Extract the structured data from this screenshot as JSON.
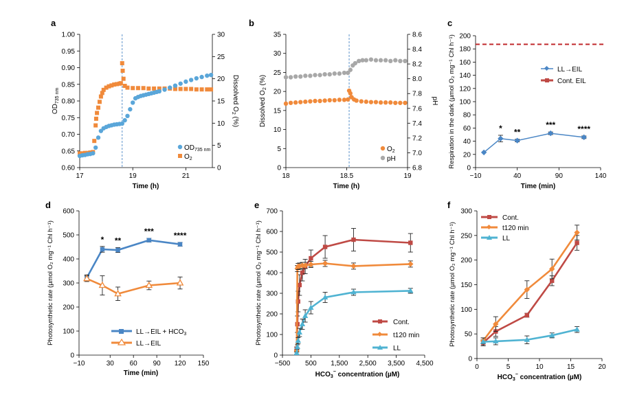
{
  "figure": {
    "colors": {
      "blue": "#4a86c5",
      "lightblue": "#5aa6d9",
      "orange": "#f08a3b",
      "darkorange": "#e9752b",
      "red": "#bf4a45",
      "cyan": "#4fb3d2",
      "gray": "#a8a8a8",
      "dashred": "#c0282b"
    }
  },
  "chart_data": [
    {
      "panel": "a",
      "type": "scatter",
      "xlabel": "Time (h)",
      "ylabel": "OD735 nm",
      "y2label": "Dissolved O2 (%)",
      "xlim": [
        17,
        22
      ],
      "ylim": [
        0.6,
        1.0
      ],
      "y2lim": [
        0,
        30
      ],
      "xticks": [
        "17",
        "19",
        "21"
      ],
      "yticks": [
        "0.60",
        "0.65",
        "0.70",
        "0.75",
        "0.80",
        "0.85",
        "0.90",
        "0.95",
        "1.00"
      ],
      "y2ticks": [
        "0",
        "5",
        "10",
        "15",
        "20",
        "25",
        "30"
      ],
      "vline_x": 18.6,
      "series": [
        {
          "name": "OD735 nm",
          "axis": "left",
          "color": "lightblue",
          "x": [
            17.0,
            17.1,
            17.2,
            17.3,
            17.4,
            17.5,
            17.6,
            17.7,
            17.8,
            17.9,
            18.0,
            18.1,
            18.2,
            18.3,
            18.4,
            18.5,
            18.6,
            18.7,
            18.8,
            18.9,
            19.0,
            19.1,
            19.2,
            19.3,
            19.4,
            19.5,
            19.6,
            19.7,
            19.8,
            19.9,
            20.0,
            20.2,
            20.4,
            20.6,
            20.8,
            21.0,
            21.2,
            21.4,
            21.6,
            21.8,
            21.95
          ],
          "y": [
            0.635,
            0.637,
            0.638,
            0.64,
            0.641,
            0.643,
            0.66,
            0.69,
            0.71,
            0.718,
            0.722,
            0.725,
            0.727,
            0.729,
            0.73,
            0.731,
            0.732,
            0.742,
            0.755,
            0.775,
            0.795,
            0.808,
            0.812,
            0.815,
            0.817,
            0.819,
            0.821,
            0.823,
            0.825,
            0.827,
            0.829,
            0.834,
            0.84,
            0.846,
            0.852,
            0.858,
            0.863,
            0.868,
            0.872,
            0.876,
            0.878
          ]
        },
        {
          "name": "O2",
          "axis": "right",
          "color": "orange",
          "x": [
            17.0,
            17.1,
            17.2,
            17.3,
            17.4,
            17.5,
            17.55,
            17.6,
            17.62,
            17.65,
            17.7,
            17.75,
            17.8,
            17.85,
            17.9,
            18.0,
            18.1,
            18.2,
            18.3,
            18.4,
            18.5,
            18.55,
            18.6,
            18.62,
            18.65,
            18.7,
            18.8,
            19.0,
            19.2,
            19.4,
            19.6,
            19.8,
            20.0,
            20.2,
            20.4,
            20.6,
            20.8,
            21.0,
            21.2,
            21.4,
            21.6,
            21.8,
            21.95
          ],
          "y": [
            3.2,
            3.2,
            3.3,
            3.3,
            3.4,
            3.5,
            6.0,
            9.5,
            11.0,
            12.3,
            13.5,
            14.8,
            16.0,
            16.8,
            17.5,
            18.0,
            18.3,
            18.5,
            18.7,
            18.8,
            18.9,
            19.0,
            23.5,
            21.8,
            20.0,
            18.4,
            18.0,
            17.9,
            17.9,
            17.9,
            17.8,
            17.8,
            17.8,
            17.8,
            17.8,
            17.7,
            17.7,
            17.7,
            17.7,
            17.6,
            17.6,
            17.6,
            17.6
          ]
        }
      ]
    },
    {
      "panel": "b",
      "type": "scatter",
      "xlabel": "Time (h)",
      "ylabel": "Dissolved O2 (%)",
      "y2label": "pH",
      "xlim": [
        18,
        19
      ],
      "ylim": [
        0,
        35
      ],
      "y2lim": [
        6.8,
        8.6
      ],
      "xticks": [
        "18",
        "18.5",
        "19"
      ],
      "yticks": [
        "0",
        "5",
        "10",
        "15",
        "20",
        "25",
        "30",
        "35"
      ],
      "y2ticks": [
        "6.8",
        "7.0",
        "7.2",
        "7.4",
        "7.6",
        "7.8",
        "8.0",
        "8.2",
        "8.4",
        "8.6"
      ],
      "vline_x": 18.52,
      "series": [
        {
          "name": "O2",
          "axis": "left",
          "color": "orange",
          "x": [
            18.0,
            18.04,
            18.08,
            18.12,
            18.16,
            18.2,
            18.24,
            18.28,
            18.32,
            18.36,
            18.4,
            18.44,
            18.48,
            18.51,
            18.52,
            18.53,
            18.54,
            18.56,
            18.58,
            18.62,
            18.66,
            18.7,
            18.74,
            18.78,
            18.82,
            18.86,
            18.9,
            18.94,
            18.98
          ],
          "y": [
            16.8,
            17.0,
            17.1,
            17.2,
            17.3,
            17.4,
            17.5,
            17.5,
            17.6,
            17.7,
            17.7,
            17.8,
            17.8,
            17.9,
            20.2,
            19.5,
            18.5,
            17.9,
            17.6,
            17.4,
            17.3,
            17.2,
            17.2,
            17.1,
            17.1,
            17.1,
            17.0,
            17.0,
            17.0
          ]
        },
        {
          "name": "pH",
          "axis": "right",
          "color": "gray",
          "x": [
            18.0,
            18.04,
            18.08,
            18.12,
            18.16,
            18.2,
            18.24,
            18.28,
            18.32,
            18.36,
            18.4,
            18.44,
            18.48,
            18.51,
            18.53,
            18.55,
            18.57,
            18.6,
            18.63,
            18.66,
            18.7,
            18.74,
            18.78,
            18.82,
            18.86,
            18.9,
            18.94,
            18.98
          ],
          "y": [
            8.02,
            8.02,
            8.03,
            8.03,
            8.04,
            8.04,
            8.05,
            8.05,
            8.06,
            8.06,
            8.07,
            8.07,
            8.08,
            8.08,
            8.12,
            8.18,
            8.21,
            8.24,
            8.25,
            8.25,
            8.26,
            8.25,
            8.25,
            8.25,
            8.24,
            8.25,
            8.24,
            8.24
          ]
        }
      ]
    },
    {
      "panel": "c",
      "type": "line",
      "xlabel": "Time (min)",
      "ylabel": "Respiration in the dark (µmol O2 mg−1 Chl h−1)",
      "xlim": [
        -10,
        140
      ],
      "ylim": [
        0,
        200
      ],
      "xticks": [
        "−10",
        "40",
        "90",
        "140"
      ],
      "yticks": [
        "0",
        "20",
        "40",
        "60",
        "80",
        "100",
        "120",
        "140",
        "160",
        "180",
        "200"
      ],
      "series": [
        {
          "name": "LL→EIL",
          "color": "blue",
          "marker": "diamond",
          "x": [
            0,
            20,
            40,
            80,
            120
          ],
          "y": [
            23,
            44,
            41,
            52,
            46
          ],
          "err": [
            0,
            5,
            2,
            2,
            2
          ]
        },
        {
          "name": "Cont. EIL",
          "color": "dashred",
          "style": "dashed",
          "y_const": 187
        }
      ],
      "annotations": [
        {
          "x": 20,
          "text": "*"
        },
        {
          "x": 40,
          "text": "**"
        },
        {
          "x": 80,
          "text": "***"
        },
        {
          "x": 120,
          "text": "****"
        }
      ]
    },
    {
      "panel": "d",
      "type": "line",
      "xlabel": "Time (min)",
      "ylabel": "Photosynthetic rate (µmol O2 mg−1 Chl h−1)",
      "xlim": [
        -10,
        150
      ],
      "ylim": [
        0,
        600
      ],
      "xticks": [
        "−10",
        "30",
        "60",
        "90",
        "120",
        "150"
      ],
      "yticks": [
        "0",
        "100",
        "200",
        "300",
        "400",
        "500",
        "600"
      ],
      "series": [
        {
          "name": "LL→EIL + HCO3",
          "color": "blue",
          "marker": "square",
          "x": [
            0,
            20,
            40,
            80,
            120
          ],
          "y": [
            322,
            440,
            437,
            478,
            461
          ],
          "err": [
            12,
            12,
            10,
            8,
            8
          ]
        },
        {
          "name": "LL→EIL",
          "color": "orange",
          "marker": "triangle-open",
          "x": [
            0,
            20,
            40,
            80,
            120
          ],
          "y": [
            318,
            290,
            255,
            290,
            300
          ],
          "err": [
            12,
            40,
            28,
            18,
            25
          ]
        }
      ],
      "annotations": [
        {
          "x": 20,
          "text": "*"
        },
        {
          "x": 40,
          "text": "**"
        },
        {
          "x": 80,
          "text": "***"
        },
        {
          "x": 120,
          "text": "****"
        }
      ]
    },
    {
      "panel": "e",
      "type": "line",
      "xlabel": "HCO3− concentration (µM)",
      "ylabel": "Photosynthetic rate (µmol O2 mg−1 Chl h−1)",
      "xlim": [
        -500,
        4500
      ],
      "ylim": [
        0,
        700
      ],
      "xticks": [
        "−500",
        "500",
        "1,500",
        "2,500",
        "3,500",
        "4,500"
      ],
      "yticks": [
        "0",
        "100",
        "200",
        "300",
        "400",
        "500",
        "600",
        "700"
      ],
      "series": [
        {
          "name": "Cont.",
          "color": "red",
          "marker": "square",
          "x": [
            0,
            25,
            50,
            100,
            200,
            300,
            500,
            1000,
            2000,
            4000
          ],
          "y": [
            30,
            150,
            260,
            340,
            400,
            430,
            470,
            525,
            560,
            545
          ],
          "err": [
            10,
            40,
            50,
            50,
            40,
            35,
            40,
            55,
            55,
            45
          ]
        },
        {
          "name": "t120 min",
          "color": "orange",
          "marker": "diamond",
          "x": [
            0,
            25,
            50,
            100,
            200,
            300,
            500,
            1000,
            2000,
            4000
          ],
          "y": [
            20,
            420,
            430,
            432,
            435,
            435,
            440,
            445,
            432,
            442
          ],
          "err": [
            5,
            15,
            15,
            15,
            15,
            15,
            15,
            15,
            15,
            15
          ]
        },
        {
          "name": "LL",
          "color": "cyan",
          "marker": "triangle",
          "x": [
            0,
            25,
            50,
            100,
            200,
            300,
            500,
            1000,
            2000,
            4000
          ],
          "y": [
            10,
            40,
            70,
            110,
            150,
            190,
            230,
            280,
            305,
            312
          ],
          "err": [
            5,
            10,
            15,
            20,
            25,
            30,
            30,
            25,
            15,
            12
          ]
        }
      ]
    },
    {
      "panel": "f",
      "type": "line",
      "xlabel": "HCO3− concentration (µM)",
      "ylabel": "Photosynthetic rate (µmol O2 mg−1 Chl h−1)",
      "xlim": [
        0,
        20
      ],
      "ylim": [
        0,
        300
      ],
      "xticks": [
        "0",
        "5",
        "10",
        "15",
        "20"
      ],
      "yticks": [
        "0",
        "50",
        "100",
        "150",
        "200",
        "250",
        "300"
      ],
      "series": [
        {
          "name": "Cont.",
          "color": "red",
          "marker": "square",
          "x": [
            1,
            3,
            8,
            12,
            16
          ],
          "y": [
            32,
            55,
            88,
            158,
            235
          ],
          "err": [
            6,
            10,
            4,
            10,
            15
          ]
        },
        {
          "name": "t120 min",
          "color": "orange",
          "marker": "diamond",
          "x": [
            1,
            3,
            8,
            12,
            16
          ],
          "y": [
            36,
            70,
            140,
            182,
            256
          ],
          "err": [
            6,
            15,
            18,
            20,
            15
          ]
        },
        {
          "name": "LL",
          "color": "cyan",
          "marker": "triangle",
          "x": [
            1,
            3,
            8,
            12,
            16
          ],
          "y": [
            34,
            35,
            38,
            47,
            59
          ],
          "err": [
            8,
            7,
            8,
            5,
            6
          ]
        }
      ]
    }
  ],
  "panels": {
    "a": {
      "letter": "a",
      "time_label": "Time (h)",
      "x_ticks": [
        "17",
        "19",
        "21"
      ],
      "y_ticks": [
        "0.60",
        "0.65",
        "0.70",
        "0.75",
        "0.80",
        "0.85",
        "0.90",
        "0.95",
        "1.00"
      ],
      "y2_ticks": [
        "0",
        "5",
        "10",
        "15",
        "20",
        "25",
        "30"
      ],
      "y_label_main": "OD",
      "y_label_sub": "735 nm",
      "y2_label_main": "Dissolved O",
      "y2_label_sub": "2",
      "y2_label_tail": " (%)",
      "legend_od_main": "OD",
      "legend_od_sub": "735 nm",
      "legend_o2_main": "O",
      "legend_o2_sub": "2"
    },
    "b": {
      "letter": "b",
      "time_label": "Time (h)",
      "x_ticks": [
        "18",
        "18.5",
        "19"
      ],
      "y_ticks": [
        "0",
        "5",
        "10",
        "15",
        "20",
        "25",
        "30",
        "35"
      ],
      "y2_ticks": [
        "6.8",
        "7.0",
        "7.2",
        "7.4",
        "7.6",
        "7.8",
        "8.0",
        "8.2",
        "8.4",
        "8.6"
      ],
      "y_label_main": "Dissolved O",
      "y_label_sub": "2",
      "y_label_tail": " (%)",
      "y2_label": "pH",
      "legend_o2_main": "O",
      "legend_o2_sub": "2",
      "legend_ph": "pH"
    },
    "c": {
      "letter": "c",
      "time_label": "Time (min)",
      "x_ticks": [
        "−10",
        "40",
        "90",
        "140"
      ],
      "y_ticks": [
        "0",
        "20",
        "40",
        "60",
        "80",
        "100",
        "120",
        "140",
        "160",
        "180",
        "200"
      ],
      "y_label": "Respiration in the dark (µmol O₂ mg⁻¹ Chl h⁻¹)",
      "legend_ll": "LL→EIL",
      "legend_cont": "Cont. EIL",
      "stars": [
        "*",
        "**",
        "***",
        "****"
      ]
    },
    "d": {
      "letter": "d",
      "time_label": "Time (min)",
      "x_ticks": [
        "−10",
        "30",
        "60",
        "90",
        "120",
        "150"
      ],
      "y_ticks": [
        "0",
        "100",
        "200",
        "300",
        "400",
        "500",
        "600"
      ],
      "y_label": "Photosynthetic rate (µmol O₂ mg⁻¹ Chl h⁻¹)",
      "legend_hco3_main": "LL→EIL + HCO",
      "legend_hco3_sub": "3",
      "legend_ll": "LL→EIL",
      "stars": [
        "*",
        "**",
        "***",
        "****"
      ]
    },
    "e": {
      "letter": "e",
      "conc_label_main": "HCO",
      "conc_label_sub": "3",
      "conc_label_sup": "−",
      "conc_label_tail": " concentration (µM)",
      "x_ticks": [
        "−500",
        "500",
        "1,500",
        "2,500",
        "3,500",
        "4,500"
      ],
      "y_ticks": [
        "0",
        "100",
        "200",
        "300",
        "400",
        "500",
        "600",
        "700"
      ],
      "y_label": "Photosynthetic rate (µmol O₂ mg⁻¹ Chl h⁻¹)",
      "legend_cont": "Cont.",
      "legend_t120": "t120 min",
      "legend_ll": "LL"
    },
    "f": {
      "letter": "f",
      "conc_label_main": "HCO",
      "conc_label_sub": "3",
      "conc_label_sup": "−",
      "conc_label_tail": " concentration (µM)",
      "x_ticks": [
        "0",
        "5",
        "10",
        "15",
        "20"
      ],
      "y_ticks": [
        "0",
        "50",
        "100",
        "150",
        "200",
        "250",
        "300"
      ],
      "y_label": "Photosynthetic rate (µmol O₂ mg⁻¹ Chl h⁻¹)",
      "legend_cont": "Cont.",
      "legend_t120": "t120 min",
      "legend_ll": "LL"
    }
  }
}
